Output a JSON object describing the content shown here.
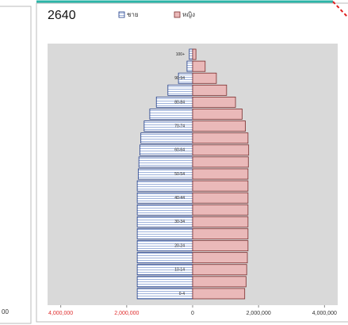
{
  "left_panel": {
    "tick_fragment": "00"
  },
  "chart_data": {
    "type": "pyramid",
    "title": "2640",
    "categories": [
      "0-4",
      null,
      "10-14",
      null,
      "20-24",
      null,
      "30-34",
      null,
      "40-44",
      null,
      "50-54",
      null,
      "60-64",
      null,
      "70-74",
      null,
      "80-84",
      null,
      "90-94",
      null,
      "100+"
    ],
    "series": [
      {
        "name": "ชาย",
        "color": "#1f3c88",
        "fill": "#d6e0f2",
        "values": [
          -1680000,
          -1680000,
          -1680000,
          -1680000,
          -1680000,
          -1680000,
          -1680000,
          -1680000,
          -1680000,
          -1680000,
          -1650000,
          -1630000,
          -1600000,
          -1570000,
          -1470000,
          -1300000,
          -1100000,
          -750000,
          -430000,
          -170000,
          -100000
        ]
      },
      {
        "name": "หญิง",
        "color": "#7a2b2b",
        "fill": "#eab9b9",
        "values": [
          1580000,
          1620000,
          1640000,
          1660000,
          1680000,
          1680000,
          1680000,
          1680000,
          1680000,
          1680000,
          1680000,
          1690000,
          1700000,
          1680000,
          1600000,
          1500000,
          1300000,
          1030000,
          720000,
          380000,
          100000
        ]
      }
    ],
    "xlim": [
      -4400000,
      4400000
    ],
    "xticks": [
      {
        "value": -4000000,
        "label": "4,000,000",
        "color": "#e03030"
      },
      {
        "value": -2000000,
        "label": "2,000,000",
        "color": "#e03030"
      },
      0,
      {
        "value": 2000000,
        "label": "2,000,000"
      },
      {
        "value": 4000000,
        "label": "4,000,000"
      }
    ]
  }
}
